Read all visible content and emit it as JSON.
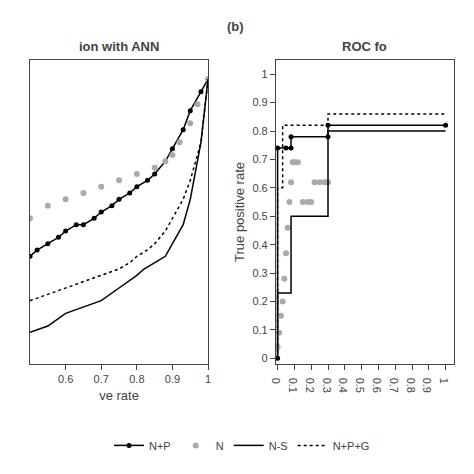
{
  "chart_data": [
    {
      "type": "line",
      "title": "ion with ANN",
      "xlabel": "ve rate",
      "xlim": [
        0.5,
        1.0
      ],
      "ylim": [
        0.955,
        1.003
      ],
      "xticks": [
        0.6,
        0.7,
        0.8,
        0.9,
        1.0
      ],
      "tick_labels": "x",
      "grid": false,
      "legend": "bottom",
      "series": [
        {
          "name": "N+P",
          "type": "line",
          "line_style": "solid",
          "marker": "circle",
          "color": "#000000",
          "x": [
            0.5,
            0.52,
            0.55,
            0.58,
            0.6,
            0.63,
            0.65,
            0.68,
            0.7,
            0.73,
            0.75,
            0.78,
            0.8,
            0.83,
            0.85,
            0.88,
            0.9,
            0.93,
            0.95,
            0.98,
            1.0
          ],
          "values": [
            0.972,
            0.973,
            0.974,
            0.975,
            0.976,
            0.977,
            0.977,
            0.978,
            0.979,
            0.98,
            0.981,
            0.982,
            0.983,
            0.984,
            0.985,
            0.987,
            0.989,
            0.992,
            0.995,
            0.998,
            1.0
          ]
        },
        {
          "name": "N",
          "type": "scatter",
          "marker": "circle",
          "color": "#aaaaaa",
          "x": [
            0.5,
            0.55,
            0.6,
            0.65,
            0.7,
            0.75,
            0.8,
            0.85,
            0.88,
            0.9,
            0.92,
            0.95,
            0.97,
            1.0
          ],
          "values": [
            0.978,
            0.98,
            0.981,
            0.982,
            0.983,
            0.984,
            0.985,
            0.986,
            0.987,
            0.988,
            0.99,
            0.993,
            0.996,
            1.0
          ]
        },
        {
          "name": "N-S",
          "type": "line",
          "line_style": "solid",
          "color": "#000000",
          "x": [
            0.5,
            0.55,
            0.6,
            0.65,
            0.7,
            0.75,
            0.8,
            0.82,
            0.85,
            0.88,
            0.9,
            0.93,
            0.95,
            0.98,
            1.0
          ],
          "values": [
            0.96,
            0.961,
            0.963,
            0.964,
            0.965,
            0.967,
            0.969,
            0.97,
            0.971,
            0.972,
            0.974,
            0.977,
            0.981,
            0.99,
            1.0
          ]
        },
        {
          "name": "N+P+G",
          "type": "line",
          "line_style": "dotted",
          "color": "#000000",
          "x": [
            0.5,
            0.55,
            0.6,
            0.65,
            0.7,
            0.75,
            0.78,
            0.8,
            0.83,
            0.85,
            0.88,
            0.9,
            0.93,
            0.95,
            0.98,
            1.0
          ],
          "values": [
            0.965,
            0.966,
            0.967,
            0.968,
            0.969,
            0.97,
            0.971,
            0.972,
            0.973,
            0.974,
            0.976,
            0.978,
            0.981,
            0.984,
            0.99,
            1.0
          ]
        }
      ]
    },
    {
      "type": "line",
      "title": "ROC fo",
      "ylabel": "True positive rate",
      "xlim": [
        -0.01,
        1.05
      ],
      "ylim": [
        -0.02,
        1.05
      ],
      "xticks": [
        0.0,
        0.1,
        0.2,
        0.3,
        0.4,
        0.5,
        0.6,
        0.7,
        0.8,
        0.9,
        1.0
      ],
      "yticks": [
        0.0,
        0.1,
        0.2,
        0.3,
        0.4,
        0.5,
        0.6,
        0.7,
        0.8,
        0.9,
        1.0
      ],
      "grid": false,
      "annotations": [
        "(b)"
      ],
      "series": [
        {
          "name": "N+P",
          "type": "line",
          "line_style": "solid",
          "marker": "circle",
          "color": "#000000",
          "x": [
            0.0,
            0.0,
            0.05,
            0.08,
            0.08,
            0.3,
            0.3,
            1.0
          ],
          "values": [
            0.0,
            0.74,
            0.74,
            0.74,
            0.78,
            0.78,
            0.82,
            0.82
          ]
        },
        {
          "name": "N",
          "type": "scatter",
          "marker": "circle",
          "color": "#aaaaaa",
          "x": [
            0.0,
            0.01,
            0.02,
            0.03,
            0.04,
            0.05,
            0.06,
            0.07,
            0.08,
            0.09,
            0.1,
            0.12,
            0.15,
            0.18,
            0.2,
            0.22,
            0.25,
            0.28,
            0.3
          ],
          "values": [
            0.04,
            0.09,
            0.15,
            0.2,
            0.28,
            0.37,
            0.46,
            0.55,
            0.62,
            0.69,
            0.69,
            0.69,
            0.55,
            0.55,
            0.55,
            0.62,
            0.62,
            0.62,
            0.62
          ]
        },
        {
          "name": "N-S",
          "type": "line",
          "line_style": "solid",
          "color": "#000000",
          "x": [
            0.0,
            0.0,
            0.0,
            0.05,
            0.08,
            0.08,
            0.3,
            0.3,
            1.0
          ],
          "values": [
            0.0,
            0.0,
            0.23,
            0.23,
            0.23,
            0.5,
            0.5,
            0.8,
            0.8
          ]
        },
        {
          "name": "N+P+G",
          "type": "line",
          "line_style": "dotted",
          "color": "#000000",
          "x": [
            0.0,
            0.0,
            0.03,
            0.03,
            0.3,
            0.3,
            1.0
          ],
          "values": [
            0.0,
            0.6,
            0.6,
            0.82,
            0.82,
            0.86,
            0.86
          ]
        }
      ]
    }
  ]
}
